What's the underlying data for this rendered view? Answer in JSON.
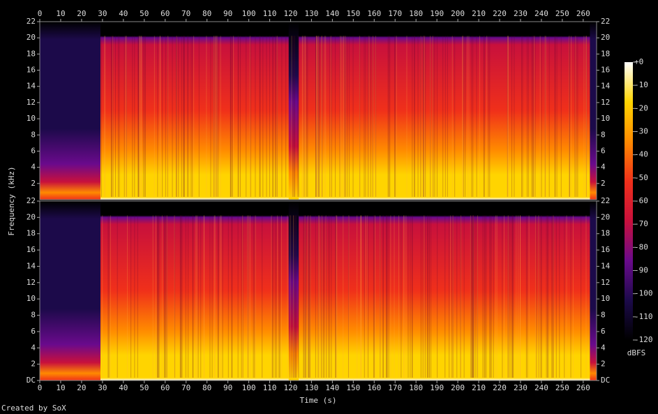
{
  "chart_data": {
    "type": "spectrogram",
    "x_label": "Time (s)",
    "y_label": "Frequency (kHz)",
    "xlim": [
      0,
      266.4
    ],
    "xticks": [
      0,
      10,
      20,
      30,
      40,
      50,
      60,
      70,
      80,
      90,
      100,
      110,
      120,
      130,
      140,
      150,
      160,
      170,
      180,
      190,
      200,
      210,
      220,
      230,
      240,
      250,
      260
    ],
    "channels": [
      {
        "ylim": [
          0,
          22
        ],
        "yticks": [
          2,
          4,
          6,
          8,
          10,
          12,
          14,
          16,
          18,
          20,
          22
        ]
      },
      {
        "ylim": [
          0,
          22
        ],
        "yticks": [
          {
            "value": 0,
            "label": "DC"
          },
          2,
          4,
          6,
          8,
          10,
          12,
          14,
          16,
          18,
          20,
          22
        ]
      }
    ],
    "colorbar": {
      "label": "dBFS",
      "lim": [
        -120,
        0
      ],
      "ticks": [
        {
          "value": 0,
          "label": "+0"
        },
        -10,
        -20,
        -30,
        -40,
        -50,
        -60,
        -70,
        -80,
        -90,
        -100,
        -110,
        -120
      ],
      "colormap": [
        "#000000",
        "#1c0a4a",
        "#6a0a8c",
        "#c8103c",
        "#f0301a",
        "#ff8a00",
        "#ffd400",
        "#ffffff"
      ]
    },
    "footer": "Created by SoX"
  }
}
